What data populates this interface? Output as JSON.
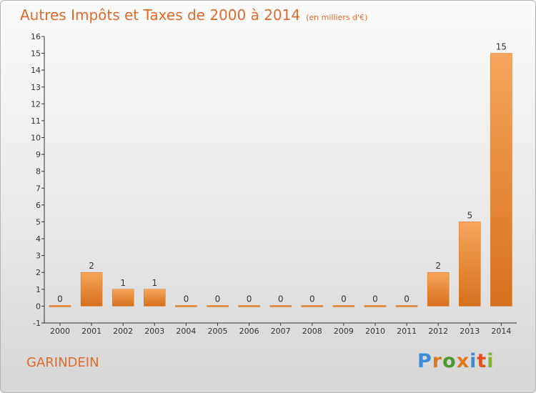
{
  "header": {
    "title": "Autres Impôts et Taxes de 2000 à 2014",
    "unit": "(en milliers d'€)"
  },
  "footer": {
    "commune": "GARINDEIN",
    "logo": "Proxiti"
  },
  "colors": {
    "title": "#e06a2a",
    "bar_light": "#f5a35a",
    "bar_dark": "#d8721e",
    "axis": "#333333"
  },
  "chart_data": {
    "type": "bar",
    "title": "Autres Impôts et Taxes de 2000 à 2014",
    "subtitle": "(en milliers d'€)",
    "xlabel": "",
    "ylabel": "",
    "categories": [
      "2000",
      "2001",
      "2002",
      "2003",
      "2004",
      "2005",
      "2006",
      "2007",
      "2008",
      "2009",
      "2010",
      "2011",
      "2012",
      "2013",
      "2014"
    ],
    "values": [
      0,
      2,
      1,
      1,
      0,
      0,
      0,
      0,
      0,
      0,
      0,
      0,
      2,
      5,
      15
    ],
    "ylim": [
      -1,
      16
    ],
    "yticks": [
      -1,
      0,
      1,
      2,
      3,
      4,
      5,
      6,
      7,
      8,
      9,
      10,
      11,
      12,
      13,
      14,
      15,
      16
    ],
    "grid": false,
    "legend": "none"
  }
}
